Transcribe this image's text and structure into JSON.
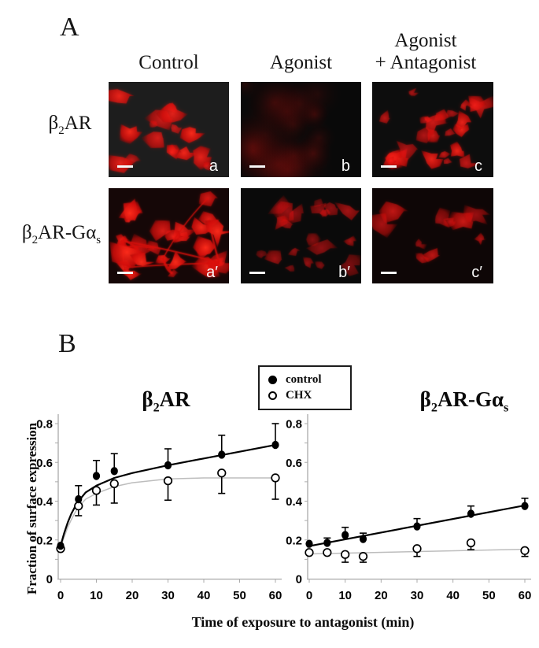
{
  "colors": {
    "accent_red": "#e8150f",
    "axis_gray": "#ababab",
    "chx_fit_gray": "#bdbdbd",
    "marker_black": "#000000"
  },
  "panel_a": {
    "label": "A",
    "column_headers": [
      {
        "lines": [
          "Control"
        ]
      },
      {
        "lines": [
          "Agonist"
        ]
      },
      {
        "lines": [
          "Agonist",
          "+ Antagonist"
        ]
      }
    ],
    "row_labels": [
      {
        "rich": [
          {
            "t": "β"
          },
          {
            "t": "2",
            "sub": true
          },
          {
            "t": "AR"
          }
        ]
      },
      {
        "rich": [
          {
            "t": "β"
          },
          {
            "t": "2",
            "sub": true
          },
          {
            "t": "AR-Gα"
          },
          {
            "t": "s",
            "sub": true
          }
        ]
      }
    ],
    "micrographs": [
      {
        "letter": "a",
        "style": "cells",
        "count": 16,
        "brightness": 1.0,
        "bg": "#1d1d1d",
        "seed": 7
      },
      {
        "letter": "b",
        "style": "diffuse",
        "count": 17,
        "brightness": 0.55,
        "bg": "#090909",
        "seed": 21
      },
      {
        "letter": "c",
        "style": "cells",
        "count": 24,
        "brightness": 0.95,
        "bg": "#0d0d0d",
        "seed": 34
      },
      {
        "letter": "a′",
        "style": "network",
        "count": 22,
        "brightness": 1.0,
        "bg": "#150707",
        "seed": 46
      },
      {
        "letter": "b′",
        "style": "cells",
        "count": 20,
        "brightness": 0.6,
        "bg": "#0a0a0a",
        "seed": 57
      },
      {
        "letter": "c′",
        "style": "cells",
        "count": 10,
        "brightness": 0.8,
        "bg": "#0e0606",
        "seed": 69
      }
    ]
  },
  "panel_b": {
    "label": "B",
    "ylabel": "Fraction of surface expression",
    "xlabel": "Time of exposure to antagonist (min)",
    "legend": [
      {
        "marker": "filled",
        "label": "control"
      },
      {
        "marker": "open",
        "label": "CHX"
      }
    ]
  },
  "chart_data": [
    {
      "type": "scatter",
      "title_rich": [
        {
          "t": "β"
        },
        {
          "t": "2",
          "sub": true
        },
        {
          "t": "AR"
        }
      ],
      "xlabel": "Time of exposure to antagonist (min)",
      "ylabel": "Fraction of surface expression",
      "xlim": [
        0,
        60
      ],
      "ylim": [
        0,
        0.8
      ],
      "x_ticks": [
        [
          0,
          "0"
        ],
        [
          10,
          "10"
        ],
        [
          20,
          "20"
        ],
        [
          30,
          "30"
        ],
        [
          40,
          "40"
        ],
        [
          50,
          "50"
        ],
        [
          60,
          "60"
        ]
      ],
      "y_ticks": [
        [
          0,
          "0"
        ],
        [
          0.2,
          "0.2"
        ],
        [
          0.4,
          "0.4"
        ],
        [
          0.6,
          "0.6"
        ],
        [
          0.8,
          "0.8"
        ]
      ],
      "series": [
        {
          "name": "control",
          "marker": "filled",
          "err": "up",
          "points": [
            [
              0,
              0.17,
              0
            ],
            [
              5,
              0.41,
              0.07
            ],
            [
              10,
              0.53,
              0.08
            ],
            [
              15,
              0.555,
              0.09
            ],
            [
              30,
              0.585,
              0.085
            ],
            [
              45,
              0.64,
              0.1
            ],
            [
              60,
              0.69,
              0.11
            ]
          ]
        },
        {
          "name": "CHX",
          "marker": "open",
          "err": "down",
          "points": [
            [
              0,
              0.155,
              0
            ],
            [
              5,
              0.375,
              0.05
            ],
            [
              10,
              0.455,
              0.075
            ],
            [
              15,
              0.49,
              0.1
            ],
            [
              30,
              0.505,
              0.1
            ],
            [
              45,
              0.545,
              0.105
            ],
            [
              60,
              0.52,
              0.11
            ]
          ]
        }
      ],
      "fits": [
        {
          "series": "CHX",
          "color": "#bdbdbd",
          "width": 1.5,
          "points": [
            [
              0,
              0.16
            ],
            [
              1,
              0.215
            ],
            [
              2,
              0.265
            ],
            [
              3,
              0.305
            ],
            [
              4,
              0.34
            ],
            [
              5,
              0.37
            ],
            [
              7,
              0.41
            ],
            [
              10,
              0.44
            ],
            [
              15,
              0.475
            ],
            [
              20,
              0.495
            ],
            [
              30,
              0.515
            ],
            [
              40,
              0.52
            ],
            [
              50,
              0.52
            ],
            [
              60,
              0.52
            ]
          ]
        },
        {
          "series": "control",
          "color": "#000000",
          "width": 2.2,
          "points": [
            [
              0,
              0.17
            ],
            [
              1,
              0.235
            ],
            [
              2,
              0.29
            ],
            [
              3,
              0.335
            ],
            [
              4,
              0.37
            ],
            [
              5,
              0.4
            ],
            [
              7,
              0.445
            ],
            [
              10,
              0.48
            ],
            [
              15,
              0.52
            ],
            [
              20,
              0.545
            ],
            [
              30,
              0.585
            ],
            [
              40,
              0.62
            ],
            [
              50,
              0.655
            ],
            [
              60,
              0.69
            ]
          ]
        }
      ]
    },
    {
      "type": "scatter",
      "title_rich": [
        {
          "t": "β"
        },
        {
          "t": "2",
          "sub": true
        },
        {
          "t": "AR-Gα"
        },
        {
          "t": "s",
          "sub": true
        }
      ],
      "xlabel": "Time of exposure to antagonist (min)",
      "ylabel": "Fraction of surface expression",
      "xlim": [
        0,
        60
      ],
      "ylim": [
        0,
        0.8
      ],
      "x_ticks": [
        [
          0,
          "0"
        ],
        [
          10,
          "10"
        ],
        [
          20,
          "20"
        ],
        [
          30,
          "30"
        ],
        [
          40,
          "40"
        ],
        [
          50,
          "50"
        ],
        [
          60,
          "60"
        ]
      ],
      "y_ticks": [
        [
          0,
          "0"
        ],
        [
          0.2,
          "0.2"
        ],
        [
          0.4,
          "0.4"
        ],
        [
          0.6,
          "0.6"
        ],
        [
          0.8,
          "0.8"
        ]
      ],
      "series": [
        {
          "name": "control",
          "marker": "filled",
          "err": "up",
          "points": [
            [
              0,
              0.18,
              0
            ],
            [
              5,
              0.185,
              0.025
            ],
            [
              10,
              0.225,
              0.04
            ],
            [
              15,
              0.205,
              0.03
            ],
            [
              30,
              0.27,
              0.04
            ],
            [
              45,
              0.335,
              0.04
            ],
            [
              60,
              0.375,
              0.04
            ]
          ]
        },
        {
          "name": "CHX",
          "marker": "open",
          "err": "down",
          "points": [
            [
              0,
              0.135,
              0
            ],
            [
              5,
              0.135,
              0
            ],
            [
              10,
              0.125,
              0.04
            ],
            [
              15,
              0.115,
              0.03
            ],
            [
              30,
              0.155,
              0.04
            ],
            [
              45,
              0.185,
              0.035
            ],
            [
              60,
              0.145,
              0.03
            ]
          ]
        }
      ],
      "fits": [
        {
          "series": "CHX",
          "color": "#bdbdbd",
          "width": 1.5,
          "points": [
            [
              0,
              0.128
            ],
            [
              60,
              0.152
            ]
          ]
        },
        {
          "series": "control",
          "color": "#000000",
          "width": 2.2,
          "points": [
            [
              0,
              0.168
            ],
            [
              60,
              0.378
            ]
          ]
        }
      ]
    }
  ]
}
